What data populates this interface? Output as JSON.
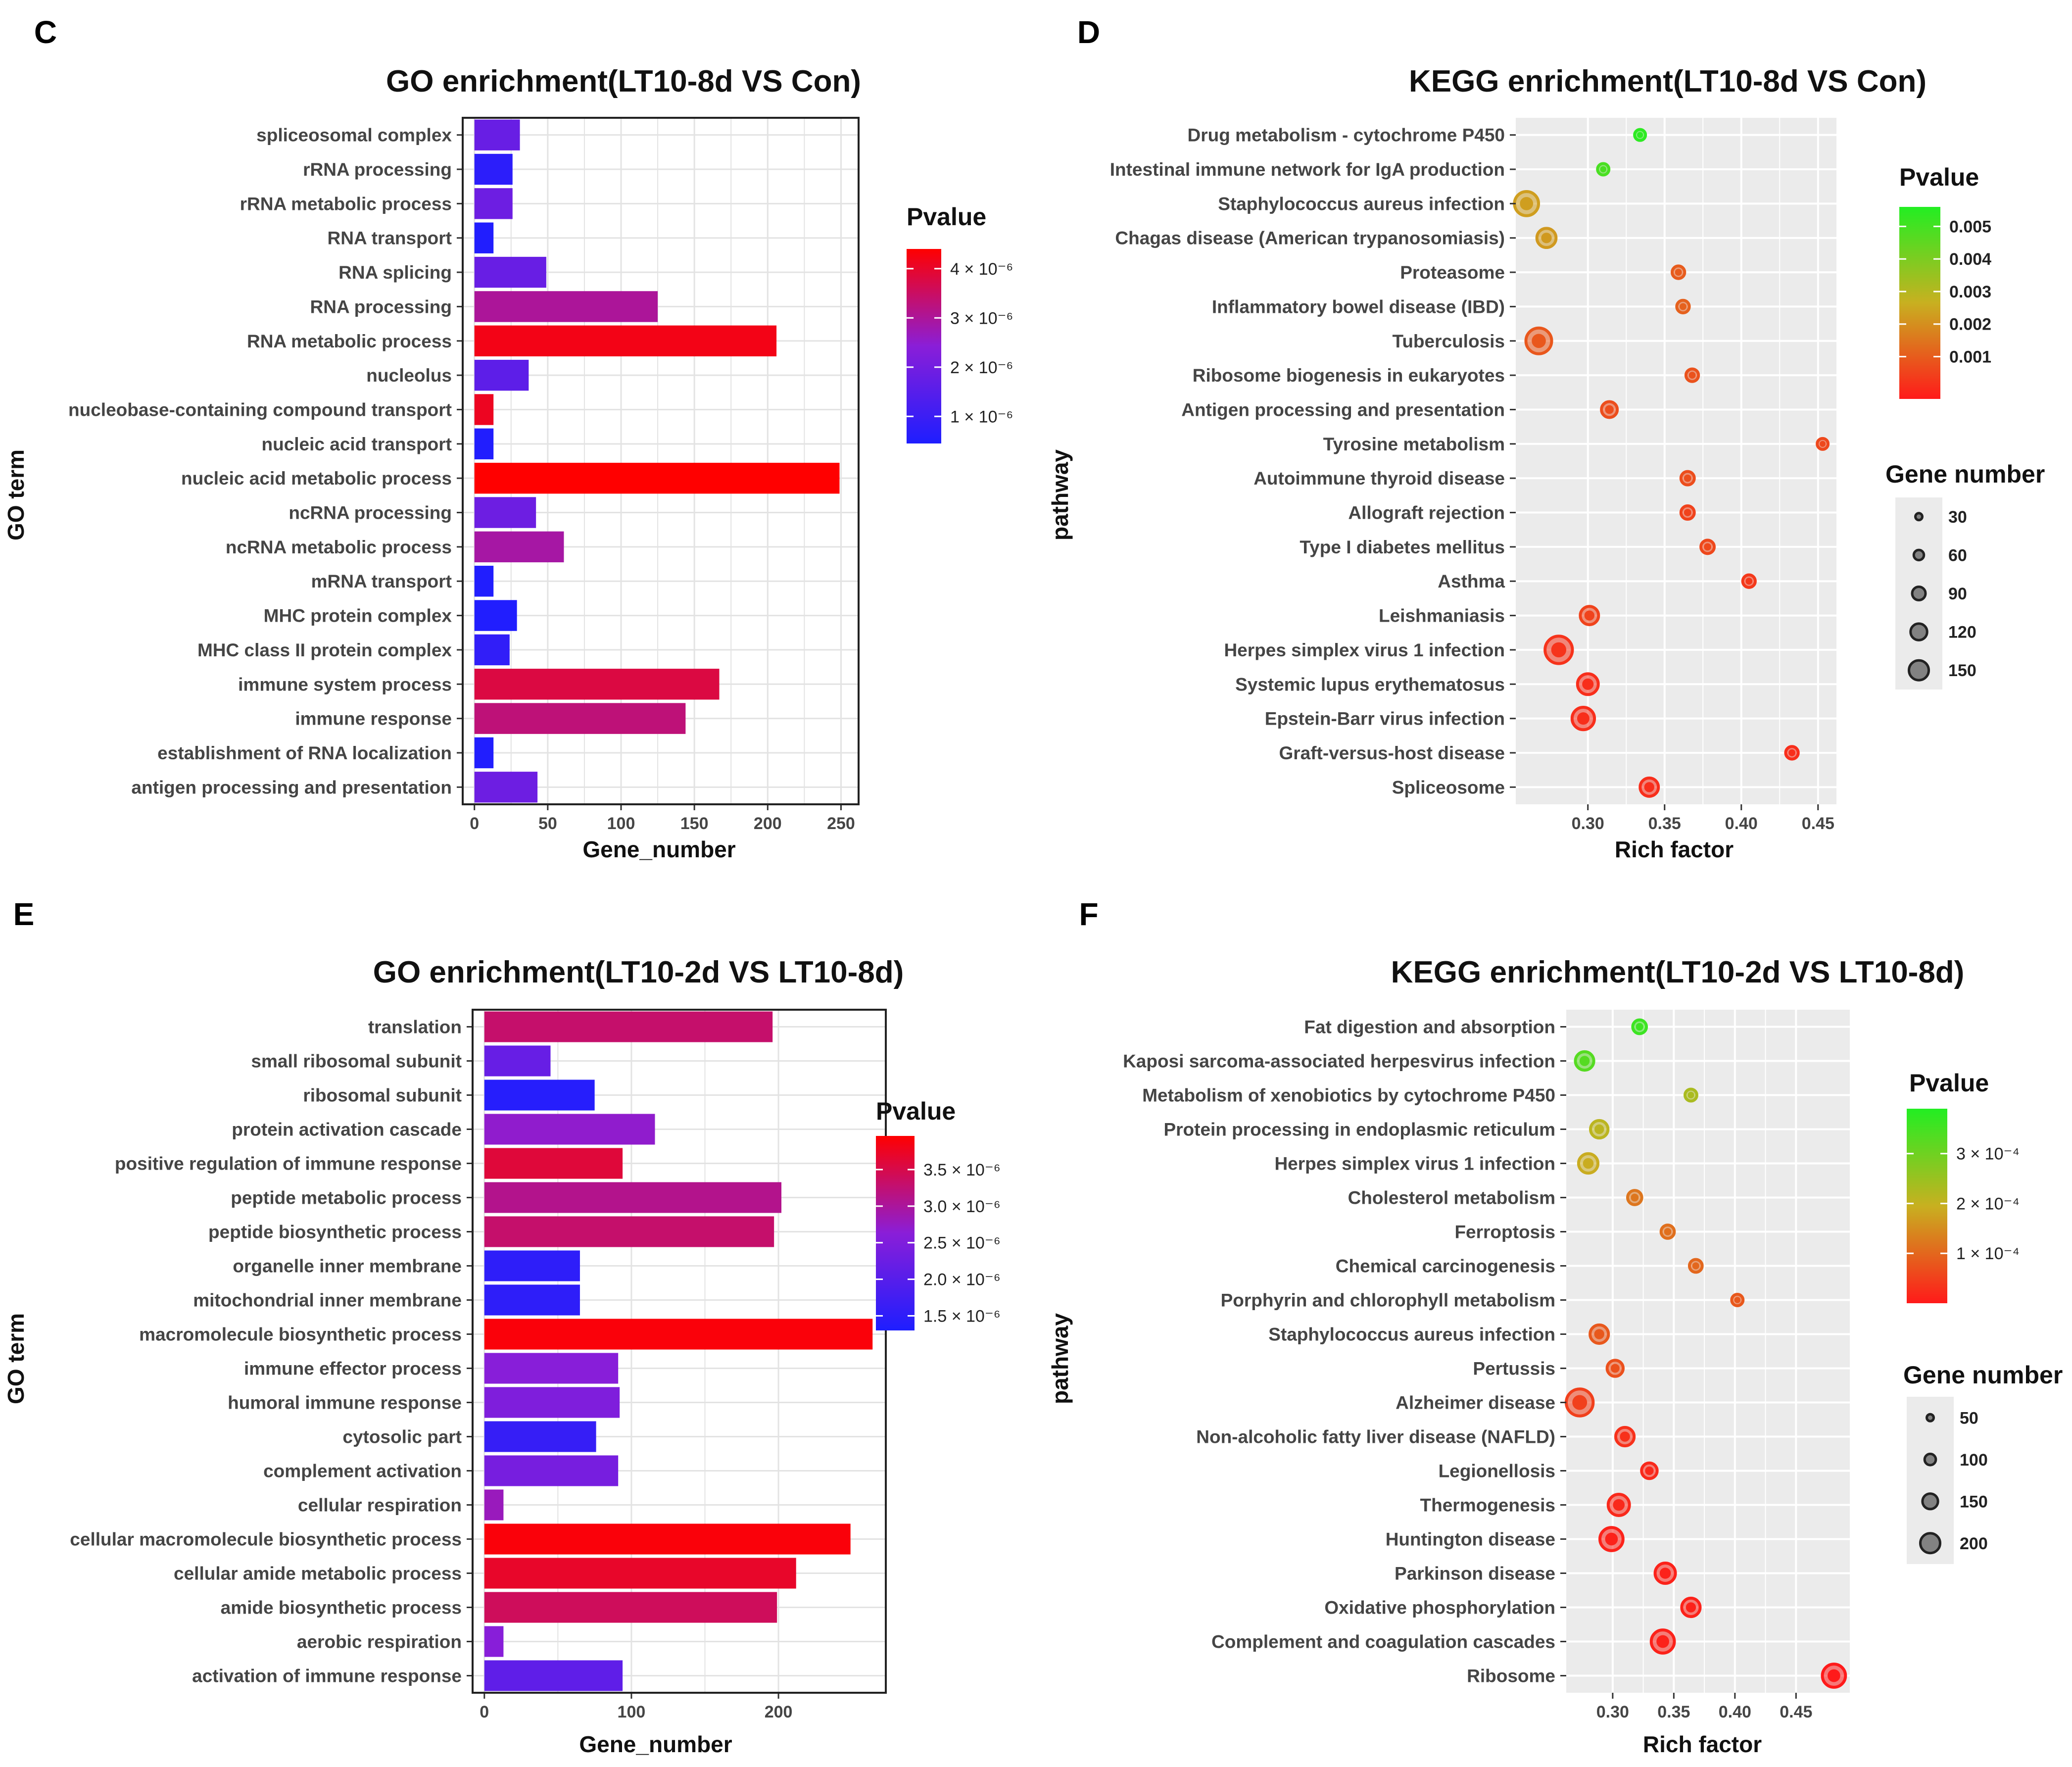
{
  "colors": {
    "p_low_go": "#1e1eff",
    "p_mid_go": "#8a1ed8",
    "p_high_go": "#ff0000",
    "p_low_kegg": "#ff1a1a",
    "p_mid_kegg": "#c8b020",
    "p_high_kegg": "#22ee22",
    "panel_bg_kegg": "#ebebeb",
    "grid_white": "#ffffff",
    "grid_light": "#e3e3e3"
  },
  "chart_data": [
    {
      "panel_letter": "C",
      "type": "bar",
      "title": "GO enrichment(LT10-8d  VS Con)",
      "ylabel": "GO term",
      "xlabel": "Gene_number",
      "xlim": [
        -8,
        262
      ],
      "xticks": [
        0,
        50,
        100,
        150,
        200,
        250
      ],
      "legend": {
        "title": "Pvalue",
        "type": "colorbar",
        "pmin": 4.5e-07,
        "pmax": 4.4e-06,
        "ticks": [
          {
            "value": 1e-06,
            "label": "1 × 10⁻⁶"
          },
          {
            "value": 2e-06,
            "label": "2 × 10⁻⁶"
          },
          {
            "value": 3e-06,
            "label": "3 × 10⁻⁶"
          },
          {
            "value": 4e-06,
            "label": "4 × 10⁻⁶"
          }
        ],
        "position": "right"
      },
      "bars": [
        {
          "term": "spliceosomal complex",
          "count": 31,
          "pvalue": 1.8e-06
        },
        {
          "term": "rRNA processing",
          "count": 26,
          "pvalue": 7e-07
        },
        {
          "term": "rRNA metabolic process",
          "count": 26,
          "pvalue": 1.9e-06
        },
        {
          "term": "RNA transport",
          "count": 13,
          "pvalue": 5e-07
        },
        {
          "term": "RNA splicing",
          "count": 49,
          "pvalue": 1.8e-06
        },
        {
          "term": "RNA processing",
          "count": 125,
          "pvalue": 3e-06
        },
        {
          "term": "RNA metabolic process",
          "count": 206,
          "pvalue": 4.2e-06
        },
        {
          "term": "nucleolus",
          "count": 37,
          "pvalue": 1.6e-06
        },
        {
          "term": "nucleobase-containing compound transport",
          "count": 13,
          "pvalue": 4.1e-06
        },
        {
          "term": "nucleic acid transport",
          "count": 13,
          "pvalue": 5e-07
        },
        {
          "term": "nucleic acid metabolic process",
          "count": 249,
          "pvalue": 4.4e-06
        },
        {
          "term": "ncRNA processing",
          "count": 42,
          "pvalue": 1.9e-06
        },
        {
          "term": "ncRNA metabolic process",
          "count": 61,
          "pvalue": 2.9e-06
        },
        {
          "term": "mRNA transport",
          "count": 13,
          "pvalue": 5e-07
        },
        {
          "term": "MHC protein complex",
          "count": 29,
          "pvalue": 5e-07
        },
        {
          "term": "MHC class II protein complex",
          "count": 24,
          "pvalue": 8e-07
        },
        {
          "term": "immune system process",
          "count": 167,
          "pvalue": 3.8e-06
        },
        {
          "term": "immune response",
          "count": 144,
          "pvalue": 3.3e-06
        },
        {
          "term": "establishment of RNA localization",
          "count": 13,
          "pvalue": 5e-07
        },
        {
          "term": "antigen processing and presentation",
          "count": 43,
          "pvalue": 1.9e-06
        }
      ]
    },
    {
      "panel_letter": "D",
      "type": "scatter",
      "title": "KEGG enrichment(LT10-8d  VS Con)",
      "ylabel": "pathway",
      "xlabel": "Rich factor",
      "xlim": [
        0.253,
        0.462
      ],
      "xticks": [
        0.3,
        0.35,
        0.4,
        0.45
      ],
      "xtick_labels": [
        "0.30",
        "0.35",
        "0.40",
        "0.45"
      ],
      "legend_color": {
        "title": "Pvalue",
        "pmin": -0.0003,
        "pmax": 0.0056,
        "ticks": [
          {
            "value": 0.001,
            "label": "0.001"
          },
          {
            "value": 0.002,
            "label": "0.002"
          },
          {
            "value": 0.003,
            "label": "0.003"
          },
          {
            "value": 0.004,
            "label": "0.004"
          },
          {
            "value": 0.005,
            "label": "0.005"
          }
        ]
      },
      "legend_size": {
        "title": "Gene number",
        "values": [
          30,
          60,
          90,
          120,
          150
        ]
      },
      "size_range": [
        30,
        150
      ],
      "points": [
        {
          "pathway": "Drug metabolism - cytochrome P450",
          "rich_factor": 0.334,
          "pvalue": 0.0054,
          "gene_number": 28
        },
        {
          "pathway": "Intestinal immune network for IgA production",
          "rich_factor": 0.31,
          "pvalue": 0.0049,
          "gene_number": 33
        },
        {
          "pathway": "Staphylococcus aureus infection",
          "rich_factor": 0.26,
          "pvalue": 0.0023,
          "gene_number": 110
        },
        {
          "pathway": "Chagas disease (American trypanosomiasis)",
          "rich_factor": 0.273,
          "pvalue": 0.0022,
          "gene_number": 80
        },
        {
          "pathway": "Proteasome",
          "rich_factor": 0.359,
          "pvalue": 0.001,
          "gene_number": 40
        },
        {
          "pathway": "Inflammatory bowel disease (IBD)",
          "rich_factor": 0.362,
          "pvalue": 0.0011,
          "gene_number": 40
        },
        {
          "pathway": "Tuberculosis",
          "rich_factor": 0.268,
          "pvalue": 0.0009,
          "gene_number": 120
        },
        {
          "pathway": "Ribosome biogenesis in eukaryotes",
          "rich_factor": 0.368,
          "pvalue": 0.0008,
          "gene_number": 40
        },
        {
          "pathway": "Antigen processing and presentation",
          "rich_factor": 0.314,
          "pvalue": 0.0007,
          "gene_number": 60
        },
        {
          "pathway": "Tyrosine metabolism",
          "rich_factor": 0.453,
          "pvalue": 0.0006,
          "gene_number": 20
        },
        {
          "pathway": "Autoimmune thyroid disease",
          "rich_factor": 0.365,
          "pvalue": 0.0007,
          "gene_number": 45
        },
        {
          "pathway": "Allograft rejection",
          "rich_factor": 0.365,
          "pvalue": 0.0005,
          "gene_number": 45
        },
        {
          "pathway": "Type I diabetes mellitus",
          "rich_factor": 0.378,
          "pvalue": 0.0006,
          "gene_number": 45
        },
        {
          "pathway": "Asthma",
          "rich_factor": 0.405,
          "pvalue": 0.0003,
          "gene_number": 40
        },
        {
          "pathway": "Leishmaniasis",
          "rich_factor": 0.301,
          "pvalue": 0.0005,
          "gene_number": 75
        },
        {
          "pathway": "Herpes simplex virus 1 infection",
          "rich_factor": 0.281,
          "pvalue": 0.0002,
          "gene_number": 130
        },
        {
          "pathway": "Systemic lupus erythematosus",
          "rich_factor": 0.3,
          "pvalue": 0.0001,
          "gene_number": 90
        },
        {
          "pathway": "Epstein-Barr virus infection",
          "rich_factor": 0.297,
          "pvalue": 0.0001,
          "gene_number": 100
        },
        {
          "pathway": "Graft-versus-host disease",
          "rich_factor": 0.433,
          "pvalue": 0.0001,
          "gene_number": 40
        },
        {
          "pathway": "Spliceosome",
          "rich_factor": 0.34,
          "pvalue": 0.0001,
          "gene_number": 75
        }
      ]
    },
    {
      "panel_letter": "E",
      "type": "bar",
      "title": "GO enrichment(LT10-2d  VS LT10-8d)",
      "ylabel": "GO term",
      "xlabel": "Gene_number",
      "xlim": [
        -8,
        273
      ],
      "xticks": [
        0,
        100,
        200
      ],
      "legend": {
        "title": "Pvalue",
        "type": "colorbar",
        "pmin": 1.3e-06,
        "pmax": 3.96e-06,
        "ticks": [
          {
            "value": 1.5e-06,
            "label": "1.5 × 10⁻⁶"
          },
          {
            "value": 2e-06,
            "label": "2.0 × 10⁻⁶"
          },
          {
            "value": 2.5e-06,
            "label": "2.5 × 10⁻⁶"
          },
          {
            "value": 3e-06,
            "label": "3.0 × 10⁻⁶"
          },
          {
            "value": 3.5e-06,
            "label": "3.5 × 10⁻⁶"
          }
        ],
        "position": "right"
      },
      "bars": [
        {
          "term": "translation",
          "count": 196,
          "pvalue": 3.3e-06
        },
        {
          "term": "small ribosomal subunit",
          "count": 45,
          "pvalue": 2.2e-06
        },
        {
          "term": "ribosomal subunit",
          "count": 75,
          "pvalue": 1.4e-06
        },
        {
          "term": "protein activation cascade",
          "count": 116,
          "pvalue": 2.7e-06
        },
        {
          "term": "positive regulation of immune response",
          "count": 94,
          "pvalue": 3.6e-06
        },
        {
          "term": "peptide metabolic process",
          "count": 202,
          "pvalue": 3.1e-06
        },
        {
          "term": "peptide biosynthetic process",
          "count": 197,
          "pvalue": 3.3e-06
        },
        {
          "term": "organelle inner membrane",
          "count": 65,
          "pvalue": 1.5e-06
        },
        {
          "term": "mitochondrial inner membrane",
          "count": 65,
          "pvalue": 1.5e-06
        },
        {
          "term": "macromolecule biosynthetic process",
          "count": 264,
          "pvalue": 3.9e-06
        },
        {
          "term": "immune effector process",
          "count": 91,
          "pvalue": 2.6e-06
        },
        {
          "term": "humoral immune response",
          "count": 92,
          "pvalue": 2.5e-06
        },
        {
          "term": "cytosolic part",
          "count": 76,
          "pvalue": 1.6e-06
        },
        {
          "term": "complement activation",
          "count": 91,
          "pvalue": 2.4e-06
        },
        {
          "term": "cellular respiration",
          "count": 13,
          "pvalue": 2.8e-06
        },
        {
          "term": "cellular macromolecule biosynthetic process",
          "count": 249,
          "pvalue": 3.9e-06
        },
        {
          "term": "cellular amide metabolic process",
          "count": 212,
          "pvalue": 3.7e-06
        },
        {
          "term": "amide biosynthetic process",
          "count": 199,
          "pvalue": 3.4e-06
        },
        {
          "term": "aerobic respiration",
          "count": 13,
          "pvalue": 2.6e-06
        },
        {
          "term": "activation of immune response",
          "count": 94,
          "pvalue": 2.1e-06
        }
      ]
    },
    {
      "panel_letter": "F",
      "type": "scatter",
      "title": "KEGG enrichment(LT10-2d  VS LT10-8d)",
      "ylabel": "pathway",
      "xlabel": "Rich factor",
      "xlim": [
        0.262,
        0.494
      ],
      "xticks": [
        0.3,
        0.35,
        0.4,
        0.45
      ],
      "xtick_labels": [
        "0.30",
        "0.35",
        "0.40",
        "0.45"
      ],
      "legend_color": {
        "title": "Pvalue",
        "pmin": 0.0,
        "pmax": 0.00039,
        "ticks": [
          {
            "value": 0.0001,
            "label": "1 × 10⁻⁴"
          },
          {
            "value": 0.0002,
            "label": "2 × 10⁻⁴"
          },
          {
            "value": 0.0003,
            "label": "3 × 10⁻⁴"
          }
        ]
      },
      "legend_size": {
        "title": "Gene number",
        "values": [
          50,
          100,
          150,
          200
        ]
      },
      "size_range": [
        20,
        230
      ],
      "points": [
        {
          "pathway": "Fat digestion and absorption",
          "rich_factor": 0.322,
          "pvalue": 0.00036,
          "gene_number": 50
        },
        {
          "pathway": "Kaposi sarcoma-associated herpesvirus infection",
          "rich_factor": 0.277,
          "pvalue": 0.00033,
          "gene_number": 100
        },
        {
          "pathway": "Metabolism of xenobiotics by cytochrome P450",
          "rich_factor": 0.364,
          "pvalue": 0.00023,
          "gene_number": 30
        },
        {
          "pathway": "Protein processing in endoplasmic reticulum",
          "rich_factor": 0.289,
          "pvalue": 0.00021,
          "gene_number": 90
        },
        {
          "pathway": "Herpes simplex virus 1 infection",
          "rich_factor": 0.28,
          "pvalue": 0.00019,
          "gene_number": 110
        },
        {
          "pathway": "Cholesterol metabolism",
          "rich_factor": 0.318,
          "pvalue": 0.00012,
          "gene_number": 55
        },
        {
          "pathway": "Ferroptosis",
          "rich_factor": 0.345,
          "pvalue": 0.00011,
          "gene_number": 45
        },
        {
          "pathway": "Chemical carcinogenesis",
          "rich_factor": 0.368,
          "pvalue": 0.0001,
          "gene_number": 40
        },
        {
          "pathway": "Porphyrin and chlorophyll metabolism",
          "rich_factor": 0.402,
          "pvalue": 8e-05,
          "gene_number": 25
        },
        {
          "pathway": "Staphylococcus aureus infection",
          "rich_factor": 0.289,
          "pvalue": 8e-05,
          "gene_number": 100
        },
        {
          "pathway": "Pertussis",
          "rich_factor": 0.302,
          "pvalue": 7e-05,
          "gene_number": 75
        },
        {
          "pathway": "Alzheimer disease",
          "rich_factor": 0.273,
          "pvalue": 5e-05,
          "gene_number": 190
        },
        {
          "pathway": "Non-alcoholic fatty liver disease (NAFLD)",
          "rich_factor": 0.31,
          "pvalue": 3e-05,
          "gene_number": 100
        },
        {
          "pathway": "Legionellosis",
          "rich_factor": 0.33,
          "pvalue": 2e-05,
          "gene_number": 70
        },
        {
          "pathway": "Thermogenesis",
          "rich_factor": 0.305,
          "pvalue": 2e-05,
          "gene_number": 130
        },
        {
          "pathway": "Huntington disease",
          "rich_factor": 0.299,
          "pvalue": 1e-05,
          "gene_number": 150
        },
        {
          "pathway": "Parkinson disease",
          "rich_factor": 0.343,
          "pvalue": 1e-05,
          "gene_number": 120
        },
        {
          "pathway": "Oxidative phosphorylation",
          "rich_factor": 0.364,
          "pvalue": 1e-05,
          "gene_number": 100
        },
        {
          "pathway": "Complement and coagulation cascades",
          "rich_factor": 0.341,
          "pvalue": 1e-05,
          "gene_number": 150
        },
        {
          "pathway": "Ribosome",
          "rich_factor": 0.481,
          "pvalue": 0.0,
          "gene_number": 150
        }
      ]
    }
  ]
}
